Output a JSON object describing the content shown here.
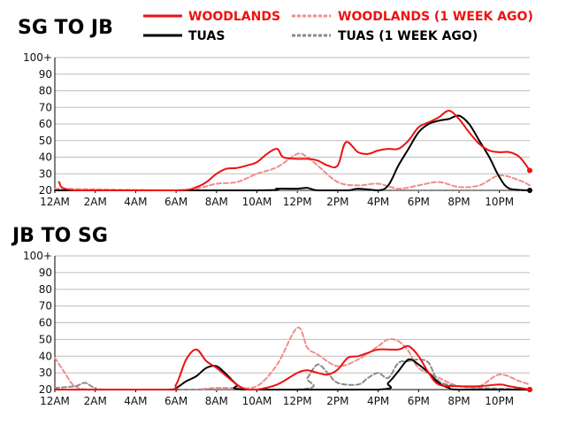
{
  "chart_data": {
    "type": "line",
    "legend": {
      "placement": "top-right",
      "entries": [
        {
          "label": "WOODLANDS",
          "color": "#ee1111",
          "style": "solid"
        },
        {
          "label": "WOODLANDS (1 WEEK AGO)",
          "color": "#f08c8c",
          "style": "dashed",
          "text_color": "#ee1111"
        },
        {
          "label": "TUAS",
          "color": "#000000",
          "style": "solid"
        },
        {
          "label": "TUAS (1 WEEK AGO)",
          "color": "#8a8a8a",
          "style": "dashed",
          "text_color": "#000000"
        }
      ]
    },
    "x_ticks": [
      "12AM",
      "2AM",
      "4AM",
      "6AM",
      "8AM",
      "10AM",
      "12PM",
      "2PM",
      "4PM",
      "6PM",
      "8PM",
      "10PM"
    ],
    "x_range_hours": [
      0,
      23.5
    ],
    "y_ticks": [
      "20",
      "30",
      "40",
      "50",
      "60",
      "70",
      "80",
      "90",
      "100+"
    ],
    "ylim": [
      20,
      100
    ],
    "panels": [
      {
        "title": "SG TO JB",
        "series": [
          {
            "name": "WOODLANDS",
            "color": "#ee1111",
            "dashed": false,
            "end_marker": true,
            "points": [
              [
                0.2,
                25
              ],
              [
                1,
                20
              ],
              [
                6,
                20
              ],
              [
                7,
                22
              ],
              [
                7.5,
                25
              ],
              [
                8,
                30
              ],
              [
                8.5,
                33
              ],
              [
                9,
                33.5
              ],
              [
                9.5,
                35
              ],
              [
                10,
                37
              ],
              [
                10.5,
                42
              ],
              [
                11,
                45
              ],
              [
                11.3,
                40
              ],
              [
                12,
                39
              ],
              [
                12.5,
                39
              ],
              [
                13,
                38
              ],
              [
                13.5,
                35
              ],
              [
                14,
                35
              ],
              [
                14.4,
                49
              ],
              [
                15,
                43
              ],
              [
                15.5,
                42
              ],
              [
                16,
                44
              ],
              [
                16.5,
                45
              ],
              [
                17,
                45
              ],
              [
                17.5,
                50
              ],
              [
                18,
                58
              ],
              [
                18.5,
                61
              ],
              [
                19,
                64
              ],
              [
                19.5,
                68
              ],
              [
                20,
                63
              ],
              [
                20.5,
                55
              ],
              [
                21,
                48
              ],
              [
                21.5,
                44
              ],
              [
                22,
                43
              ],
              [
                22.5,
                43
              ],
              [
                23,
                40
              ],
              [
                23.5,
                32
              ]
            ]
          },
          {
            "name": "WOODLANDS (1 WEEK AGO)",
            "color": "#f08c8c",
            "dashed": true,
            "points": [
              [
                0,
                21
              ],
              [
                6,
                20
              ],
              [
                7,
                21
              ],
              [
                8,
                24
              ],
              [
                9,
                25
              ],
              [
                10,
                30
              ],
              [
                11,
                34
              ],
              [
                12,
                42
              ],
              [
                12.5,
                40
              ],
              [
                13,
                35
              ],
              [
                14,
                25
              ],
              [
                15,
                23
              ],
              [
                16,
                24
              ],
              [
                17,
                21
              ],
              [
                18,
                23
              ],
              [
                19,
                25
              ],
              [
                20,
                22
              ],
              [
                21,
                23
              ],
              [
                22,
                29
              ],
              [
                23,
                26
              ],
              [
                23.5,
                23
              ]
            ]
          },
          {
            "name": "TUAS",
            "color": "#000000",
            "dashed": false,
            "end_marker": true,
            "points": [
              [
                0,
                20
              ],
              [
                10,
                20
              ],
              [
                11,
                21
              ],
              [
                12,
                21
              ],
              [
                12.5,
                21.5
              ],
              [
                13,
                20
              ],
              [
                14.5,
                20
              ],
              [
                15,
                21
              ],
              [
                16,
                20
              ],
              [
                16.5,
                23
              ],
              [
                17,
                35
              ],
              [
                17.5,
                45
              ],
              [
                18,
                55
              ],
              [
                18.5,
                60
              ],
              [
                19,
                62
              ],
              [
                19.5,
                63
              ],
              [
                20,
                65
              ],
              [
                20.5,
                60
              ],
              [
                21,
                50
              ],
              [
                21.5,
                40
              ],
              [
                22,
                28
              ],
              [
                22.5,
                21
              ],
              [
                23.5,
                20
              ]
            ]
          },
          {
            "name": "TUAS (1 WEEK AGO)",
            "color": "#8a8a8a",
            "dashed": true,
            "points": [
              [
                0,
                20
              ],
              [
                23.5,
                20
              ]
            ]
          }
        ]
      },
      {
        "title": "JB TO SG",
        "series": [
          {
            "name": "WOODLANDS",
            "color": "#ee1111",
            "dashed": false,
            "end_marker": true,
            "points": [
              [
                0,
                20
              ],
              [
                5.5,
                20
              ],
              [
                6,
                23
              ],
              [
                6.5,
                38
              ],
              [
                7,
                44
              ],
              [
                7.5,
                37
              ],
              [
                8,
                33
              ],
              [
                8.5,
                28
              ],
              [
                9,
                23
              ],
              [
                9.5,
                20
              ],
              [
                10,
                20
              ],
              [
                11,
                23
              ],
              [
                12,
                30
              ],
              [
                12.5,
                31.5
              ],
              [
                13,
                30
              ],
              [
                13.5,
                29
              ],
              [
                14,
                32
              ],
              [
                14.5,
                39
              ],
              [
                15,
                40
              ],
              [
                15.5,
                42
              ],
              [
                16,
                44
              ],
              [
                17,
                44
              ],
              [
                17.5,
                46
              ],
              [
                18,
                40
              ],
              [
                18.5,
                30
              ],
              [
                19,
                23
              ],
              [
                20,
                22
              ],
              [
                21,
                22
              ],
              [
                22,
                23
              ],
              [
                22.5,
                22
              ],
              [
                23,
                21
              ],
              [
                23.5,
                20
              ]
            ]
          },
          {
            "name": "WOODLANDS (1 WEEK AGO)",
            "color": "#f08c8c",
            "dashed": true,
            "points": [
              [
                0,
                39
              ],
              [
                0.5,
                30
              ],
              [
                1,
                22
              ],
              [
                2,
                20
              ],
              [
                6,
                20
              ],
              [
                7,
                20
              ],
              [
                8,
                21
              ],
              [
                9,
                21
              ],
              [
                10,
                22
              ],
              [
                11,
                35
              ],
              [
                12,
                57
              ],
              [
                12.5,
                45
              ],
              [
                13,
                41
              ],
              [
                14,
                34
              ],
              [
                15,
                38
              ],
              [
                16,
                46
              ],
              [
                16.5,
                50
              ],
              [
                17,
                49
              ],
              [
                17.5,
                43
              ],
              [
                18,
                33
              ],
              [
                19,
                27
              ],
              [
                20,
                22
              ],
              [
                21,
                22
              ],
              [
                22,
                29
              ],
              [
                23,
                25
              ],
              [
                23.5,
                23
              ]
            ]
          },
          {
            "name": "TUAS",
            "color": "#000000",
            "dashed": false,
            "end_marker": true,
            "points": [
              [
                0,
                20
              ],
              [
                5.5,
                20
              ],
              [
                6,
                21
              ],
              [
                6.5,
                25
              ],
              [
                7,
                28
              ],
              [
                7.5,
                33
              ],
              [
                8,
                34
              ],
              [
                8.5,
                29
              ],
              [
                9,
                23
              ],
              [
                9.5,
                20
              ],
              [
                16,
                20
              ],
              [
                16.5,
                24
              ],
              [
                17,
                31
              ],
              [
                17.5,
                38
              ],
              [
                18,
                35
              ],
              [
                18.5,
                30
              ],
              [
                19,
                24
              ],
              [
                19.5,
                21
              ],
              [
                20,
                20
              ],
              [
                23.5,
                20
              ]
            ]
          },
          {
            "name": "TUAS (1 WEEK AGO)",
            "color": "#8a8a8a",
            "dashed": true,
            "points": [
              [
                0,
                21
              ],
              [
                1,
                22
              ],
              [
                1.5,
                24
              ],
              [
                2,
                21
              ],
              [
                3,
                20
              ],
              [
                12,
                20
              ],
              [
                12.5,
                27
              ],
              [
                13,
                35
              ],
              [
                13.5,
                30
              ],
              [
                14,
                24
              ],
              [
                15,
                23
              ],
              [
                15.5,
                27
              ],
              [
                16,
                30
              ],
              [
                16.5,
                27
              ],
              [
                17,
                36
              ],
              [
                17.5,
                37
              ],
              [
                18,
                38
              ],
              [
                18.5,
                36
              ],
              [
                19,
                25
              ],
              [
                20,
                22
              ],
              [
                21,
                21
              ],
              [
                23.5,
                20
              ]
            ]
          }
        ]
      }
    ]
  }
}
